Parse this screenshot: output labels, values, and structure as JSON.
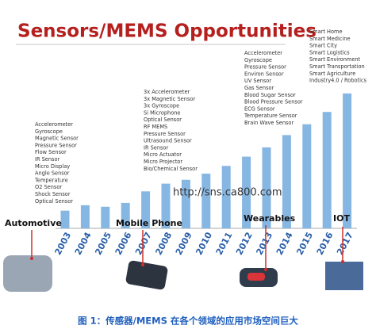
{
  "chart_data": {
    "type": "bar",
    "title": "Sensors/MEMS Opportunities",
    "categories": [
      "2003",
      "2004",
      "2005",
      "2006",
      "2007",
      "2008",
      "2009",
      "2010",
      "2011",
      "2012",
      "2013",
      "2014",
      "2015",
      "2016",
      "2017"
    ],
    "values": [
      23,
      30,
      28,
      33,
      48,
      58,
      63,
      71,
      81,
      93,
      105,
      121,
      135,
      151,
      175
    ],
    "color": "#86b6e2",
    "ylim": [
      0,
      180
    ],
    "annotations": [
      {
        "label": "Automotive",
        "items": [
          "Accelerometer",
          "Gyroscope",
          "Magnetic Sensor",
          "Pressure Sensor",
          "Flow Sensor",
          "IR Sensor",
          "Micro Display",
          "Angle Sensor",
          "Temperature",
          "O2 Sensor",
          "Shock Sensor",
          "Optical Sensor"
        ]
      },
      {
        "label": "Mobile Phone",
        "items": [
          "3x Accelerometer",
          "3x Magnetic Sensor",
          "3x Gyroscope",
          "Si Microphone",
          "Optical Sensor",
          "RF MEMS",
          "Pressure Sensor",
          "Ultrasound Sensor",
          "IR Sensor",
          "Micro Actuator",
          "Micro Projector",
          "Bio/Chemical Sensor"
        ]
      },
      {
        "label": "Wearables",
        "items": [
          "Accelerometer",
          "Gyroscope",
          "Pressure Sensor",
          "Environ Sensor",
          "UV Sensor",
          "Gas Sensor",
          "Blood Sugar Sensor",
          "Blood Pressure Sensor",
          "ECG Sensor",
          "Temperature Sensor",
          "Brain Wave Sensor"
        ]
      },
      {
        "label": "IOT",
        "items": [
          "Smart Home",
          "Smart Medicine",
          "Smart City",
          "Smart Logistics",
          "Smart Environment",
          "Smart Transportation",
          "Smart Agriculture",
          "Industry4.0 / Robotics"
        ]
      }
    ]
  },
  "watermark": "http://sns.ca800.com",
  "caption": "图 1：传感器/MEMS 在各个领域的应用市场空间巨大"
}
